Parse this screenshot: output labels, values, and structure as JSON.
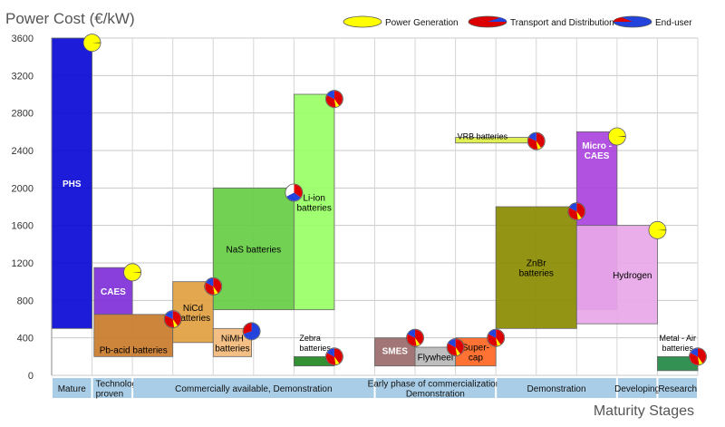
{
  "chart_data": {
    "type": "bar",
    "title": "Power Cost (€/kW)",
    "xlabel": "Maturity Stages",
    "ylabel": "Power Cost (€/kW)",
    "ylim": [
      0,
      3600
    ],
    "yticks": [
      0,
      400,
      800,
      1200,
      1600,
      2000,
      2400,
      2800,
      3200,
      3600
    ],
    "grid": true,
    "legend_position": "top-right",
    "legend": [
      {
        "name": "Power Generation",
        "color": "#ffff00",
        "pie": "power"
      },
      {
        "name": "Transport and Distribution",
        "color": "#dd0000",
        "pie": "transport"
      },
      {
        "name": "End-user",
        "color": "#2244dd",
        "pie": "enduser"
      }
    ],
    "stages": [
      {
        "label": "Mature",
        "lines": [
          "Mature"
        ],
        "x0": 0,
        "x1": 1,
        "align": "middle"
      },
      {
        "label": "Technologically proven",
        "lines": [
          "Technologically",
          "proven"
        ],
        "x0": 1,
        "x1": 2,
        "align": "start"
      },
      {
        "label": "Commercially available, Demonstration",
        "lines": [
          "Commercially available, Demonstration"
        ],
        "x0": 2,
        "x1": 8,
        "align": "middle"
      },
      {
        "label": "Early phase of commercialization, Demonstration",
        "lines": [
          "Early phase of commercialization,",
          "Demonstration"
        ],
        "x0": 8,
        "x1": 11,
        "align": "middle"
      },
      {
        "label": "Demonstration",
        "lines": [
          "Demonstration"
        ],
        "x0": 11,
        "x1": 14,
        "align": "middle"
      },
      {
        "label": "Developing",
        "lines": [
          "Developing"
        ],
        "x0": 14,
        "x1": 15,
        "align": "middle"
      },
      {
        "label": "Research",
        "lines": [
          "Research"
        ],
        "x0": 15,
        "x1": 16,
        "align": "middle"
      }
    ],
    "technologies": [
      {
        "name": "PHS",
        "lines": [
          "PHS"
        ],
        "x0": 0.0,
        "x1": 1.0,
        "low": 500,
        "high": 3600,
        "color": "#0a0ad6",
        "text_color": "#ffffff",
        "label_pos": "middle",
        "pie": "power",
        "pie_value": 3550
      },
      {
        "name": "CAES",
        "lines": [
          "CAES"
        ],
        "x0": 1.05,
        "x1": 2.0,
        "low": 650,
        "high": 1150,
        "color": "#7f2fd8",
        "text_color": "#ffffff",
        "label_pos": "middle",
        "pie": "power",
        "pie_value": 1100
      },
      {
        "name": "Pb-acid batteries",
        "lines": [
          "Pb-acid batteries"
        ],
        "x0": 1.05,
        "x1": 3.0,
        "low": 200,
        "high": 650,
        "color": "#c97a2a",
        "text_color": "#000000",
        "label_pos": "bottom",
        "pie": "transport",
        "pie_value": 600
      },
      {
        "name": "NiCd batteries",
        "lines": [
          "NiCd",
          "batteries"
        ],
        "x0": 3.0,
        "x1": 4.0,
        "low": 350,
        "high": 1000,
        "color": "#e0a040",
        "text_color": "#000000",
        "label_pos": "middle",
        "pie": "transport",
        "pie_value": 950
      },
      {
        "name": "NiMH batteries",
        "lines": [
          "NiMH",
          "batteries"
        ],
        "x0": 4.0,
        "x1": 4.95,
        "low": 200,
        "high": 500,
        "color": "#f2ba7a",
        "text_color": "#000000",
        "label_pos": "middle",
        "pie": "enduser",
        "pie_value": 470
      },
      {
        "name": "NaS batteries",
        "lines": [
          "NaS batteries"
        ],
        "x0": 4.0,
        "x1": 6.0,
        "low": 700,
        "high": 2000,
        "color": "#66cc44",
        "text_color": "#000000",
        "label_pos": "middle",
        "pie": "all",
        "pie_value": 1950
      },
      {
        "name": "Li-ion batteries",
        "lines": [
          "Li-ion",
          "batteries"
        ],
        "x0": 6.0,
        "x1": 7.0,
        "low": 700,
        "high": 3000,
        "color": "#99ff66",
        "text_color": "#000000",
        "label_pos": "middle",
        "pie": "transport",
        "pie_value": 2950
      },
      {
        "name": "Zebra batteries",
        "lines": [
          "Zebra",
          "batteries"
        ],
        "x0": 6.0,
        "x1": 7.0,
        "low": 100,
        "high": 200,
        "color": "#228822",
        "text_color": "#000000",
        "label_pos": "above",
        "pie": "transport",
        "pie_value": 200
      },
      {
        "name": "SMES",
        "lines": [
          "SMES"
        ],
        "x0": 8.0,
        "x1": 9.0,
        "low": 100,
        "high": 400,
        "color": "#9a6a6a",
        "text_color": "#ffffff",
        "label_pos": "upper",
        "pie": "transport",
        "pie_value": 400
      },
      {
        "name": "Flywheel",
        "lines": [
          "Flywheel"
        ],
        "x0": 9.0,
        "x1": 10.0,
        "low": 100,
        "high": 300,
        "color": "#b8b8b8",
        "text_color": "#000000",
        "label_pos": "middle",
        "pie": "transport",
        "pie_value": 300
      },
      {
        "name": "Super-cap",
        "lines": [
          "Super-",
          "cap"
        ],
        "x0": 10.0,
        "x1": 11.0,
        "low": 100,
        "high": 400,
        "color": "#ff6622",
        "text_color": "#000000",
        "label_pos": "middle",
        "pie": "transport",
        "pie_value": 400
      },
      {
        "name": "VRB batteries",
        "lines": [
          "VRB batteries"
        ],
        "x0": 10.0,
        "x1": 12.0,
        "low": 2480,
        "high": 2540,
        "color": "#ddee44",
        "text_color": "#000000",
        "label_pos": "above",
        "pie": "transport",
        "pie_value": 2500
      },
      {
        "name": "ZnBr batteries",
        "lines": [
          "ZnBr",
          "batteries"
        ],
        "x0": 11.0,
        "x1": 13.0,
        "low": 500,
        "high": 1800,
        "color": "#8a8a00",
        "text_color": "#000000",
        "label_pos": "middle",
        "pie": "transport",
        "pie_value": 1750
      },
      {
        "name": "Micro - CAES",
        "lines": [
          "Micro -",
          "CAES"
        ],
        "x0": 13.0,
        "x1": 14.0,
        "low": 700,
        "high": 2600,
        "color": "#aa44dd",
        "text_color": "#ffffff",
        "label_pos": "upper",
        "pie": "power",
        "pie_value": 2550
      },
      {
        "name": "Hydrogen",
        "lines": [
          "Hydrogen"
        ],
        "x0": 13.0,
        "x1": 15.0,
        "low": 550,
        "high": 1600,
        "color": "#e8a8e8",
        "text_color": "#000000",
        "label_pos": "right",
        "pie": "power",
        "pie_value": 1550
      },
      {
        "name": "Metal - Air batteries",
        "lines": [
          "Metal - Air",
          "batteries"
        ],
        "x0": 15.0,
        "x1": 16.0,
        "low": 50,
        "high": 200,
        "color": "#228844",
        "text_color": "#000000",
        "label_pos": "above",
        "pie": "transport",
        "pie_value": 200
      }
    ]
  }
}
